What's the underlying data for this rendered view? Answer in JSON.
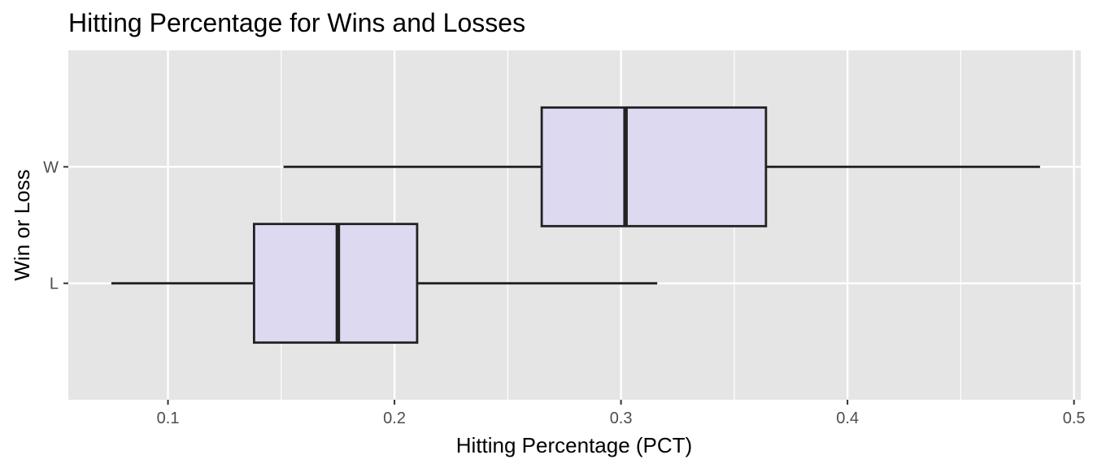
{
  "chart_data": {
    "type": "boxplot",
    "orientation": "horizontal",
    "title": "Hitting Percentage for Wins and Losses",
    "xlabel": "Hitting Percentage (PCT)",
    "ylabel": "Win or Loss",
    "xlim": [
      0.056,
      0.503
    ],
    "x_ticks": [
      "0.1",
      "0.2",
      "0.3",
      "0.4",
      "0.5"
    ],
    "x_tick_values": [
      0.1,
      0.2,
      0.3,
      0.4,
      0.5
    ],
    "x_minor_grid": [
      0.15,
      0.25,
      0.35,
      0.45
    ],
    "categories": [
      "L",
      "W"
    ],
    "grid": true,
    "colors": {
      "panel": "#e5e5e5",
      "box_fill": "#dcd9f1",
      "line": "#222222",
      "grid": "#ffffff"
    },
    "series": [
      {
        "category": "L",
        "whisker_low": 0.075,
        "q1": 0.138,
        "median": 0.175,
        "q3": 0.21,
        "whisker_high": 0.316
      },
      {
        "category": "W",
        "whisker_low": 0.151,
        "q1": 0.265,
        "median": 0.302,
        "q3": 0.364,
        "whisker_high": 0.485
      }
    ]
  }
}
